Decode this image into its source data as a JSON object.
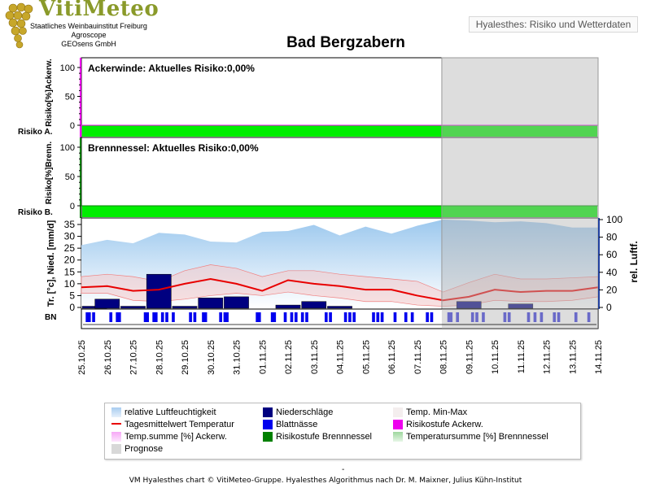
{
  "header": {
    "logo_title": "VitiMeteo",
    "logo_lines": [
      "Staatliches Weinbauinstitut Freiburg",
      "Agroscope",
      "GEOsens GmbH"
    ],
    "badge": "Hyalesthes: Risiko und Wetterdaten"
  },
  "colors": {
    "risk_green": "#00ee00",
    "prognose_grey": "#d8d8d8",
    "temp_line": "#e80000",
    "precip_bar": "#000080",
    "leafwet_bar": "#0000ee",
    "humidity_area": "#9cc8ee",
    "minmax_band": "#f5c8c8",
    "ackerwinde_axis": "#ee00ee",
    "brennnessel_axis": "#008000"
  },
  "chart_data": [
    {
      "type": "area",
      "title": "Ackerwinde: Aktuelles Risiko:0,00%",
      "ylabel": "Risiko[%]Ackerw.",
      "row_label": "Risiko A.",
      "yticks": [
        "100",
        "50",
        "0"
      ],
      "ylim": [
        0,
        100
      ],
      "risk_values": [
        0,
        0,
        0,
        0,
        0,
        0,
        0,
        0,
        0,
        0,
        0,
        0,
        0,
        0,
        0,
        0,
        0,
        0,
        0,
        0,
        0
      ],
      "risk_level_values": [
        1,
        1,
        1,
        1,
        1,
        1,
        1,
        1,
        1,
        1,
        1,
        1,
        1,
        1,
        1,
        1,
        1,
        1,
        1,
        1,
        1
      ]
    },
    {
      "type": "area",
      "title": "Brennnessel: Aktuelles Risiko:0,00%",
      "ylabel": "Risiko[%]Brenn.",
      "row_label": "Risiko B.",
      "yticks": [
        "100",
        "50",
        "0"
      ],
      "ylim": [
        0,
        100
      ],
      "risk_values": [
        0,
        0,
        0,
        0,
        0,
        0,
        0,
        0,
        0,
        0,
        0,
        0,
        0,
        0,
        0,
        0,
        0,
        0,
        0,
        0,
        0
      ],
      "risk_level_values": [
        1,
        1,
        1,
        1,
        1,
        1,
        1,
        1,
        1,
        1,
        1,
        1,
        1,
        1,
        1,
        1,
        1,
        1,
        1,
        1,
        1
      ]
    },
    {
      "type": "bar",
      "title": "",
      "ylabel": "Tr. [°c], Nied. [mm/d]",
      "ylabel_right": "rel. Luftf.",
      "yticks_left": [
        "35",
        "30",
        "25",
        "20",
        "15",
        "10",
        "5",
        "0"
      ],
      "yticks_right": [
        "100",
        "80",
        "60",
        "40",
        "20",
        "0"
      ],
      "ylim": [
        0,
        35
      ],
      "ylim_right": [
        0,
        100
      ],
      "row_label": "BN",
      "categories": [
        "25.10.25",
        "26.10.25",
        "27.10.25",
        "28.10.25",
        "29.10.25",
        "30.10.25",
        "31.10.25",
        "01.11.25",
        "02.11.25",
        "03.11.25",
        "04.11.25",
        "05.11.25",
        "06.11.25",
        "07.11.25",
        "08.11.25",
        "09.11.25",
        "10.11.25",
        "11.11.25",
        "12.11.25",
        "13.11.25",
        "14.11.25"
      ],
      "prognose_from": "08.11.25",
      "series": [
        {
          "name": "relative Luftfeuchtigkeit",
          "values": [
            71,
            77,
            73,
            85,
            83,
            75,
            74,
            86,
            87,
            94,
            82,
            92,
            84,
            93,
            100,
            99,
            97,
            98,
            96,
            91,
            91
          ]
        },
        {
          "name": "Tagesmitteltemperatur",
          "values": [
            8.5,
            9,
            7,
            7.5,
            10,
            12,
            10,
            7,
            11.5,
            10,
            9,
            7.5,
            7.5,
            5,
            3,
            4.5,
            7.5,
            6.5,
            7,
            7,
            8.5
          ]
        },
        {
          "name": "Temp. Min",
          "values": [
            6,
            6,
            3,
            2.5,
            3.5,
            5,
            6,
            5,
            6.5,
            5,
            4,
            2.5,
            2.5,
            1,
            0.5,
            1,
            3,
            2.5,
            2.5,
            3,
            4.5
          ]
        },
        {
          "name": "Temp. Max",
          "values": [
            13,
            14,
            13,
            11,
            15.5,
            18,
            16.5,
            13,
            15.5,
            15.5,
            14,
            13,
            12,
            11,
            6.5,
            10.5,
            14,
            12,
            12,
            12.5,
            13
          ]
        },
        {
          "name": "Niederschläge",
          "values": [
            0.5,
            3.5,
            0.5,
            14,
            0.5,
            4,
            4.5,
            0,
            1,
            2.5,
            0.5,
            0,
            0,
            0,
            0,
            2.5,
            0,
            1.5,
            0,
            0,
            0
          ]
        }
      ],
      "leaf_wetness_hours": [
        [
          2,
          3,
          5
        ],
        [
          1,
          4,
          5
        ],
        [
          5,
          6,
          9,
          10
        ],
        [
          1,
          3,
          6
        ],
        [
          2,
          4,
          8,
          9
        ],
        [
          4,
          6,
          7
        ],
        [
          9,
          10
        ],
        [
          4,
          5,
          10
        ],
        [
          1,
          3,
          6,
          8
        ],
        [
          5,
          7
        ],
        [
          2,
          4,
          6
        ],
        [
          3,
          5,
          7
        ],
        [
          1,
          6,
          9
        ],
        [
          4,
          6
        ],
        [
          2,
          3,
          6
        ],
        [
          1,
          3,
          6
        ],
        [
          4,
          6
        ],
        [
          3,
          6,
          9
        ],
        [
          3,
          5
        ],
        [
          1,
          7
        ],
        []
      ]
    }
  ],
  "legend": {
    "items": [
      {
        "label": "relative Luftfeuchtigkeit",
        "color": "#a8cdf0"
      },
      {
        "label": "Niederschläge",
        "color": "#000080"
      },
      {
        "label": "Temp. Min-Max",
        "color": "#f4eeee"
      },
      {
        "label": "Tagesmittelwert Temperatur",
        "color": "#e80000"
      },
      {
        "label": "Blattnässe",
        "color": "#0000ee"
      },
      {
        "label": "Risikostufe Ackerw.",
        "color": "#ee00ee"
      },
      {
        "label": "Temp.summe [%] Ackerw.",
        "color": "#f6a8f6"
      },
      {
        "label": "Risikostufe Brennnessel",
        "color": "#008000"
      },
      {
        "label": "Temperatursumme [%] Brennnessel",
        "color": "#9ed89e"
      },
      {
        "label": "Prognose",
        "color": "#d8d8d8"
      }
    ]
  },
  "footer": {
    "dash": "-",
    "credit": "VM Hyalesthes chart © VitiMeteo-Gruppe. Hyalesthes Algorithmus nach Dr. M. Maixner, Julius Kühn-Institut"
  }
}
